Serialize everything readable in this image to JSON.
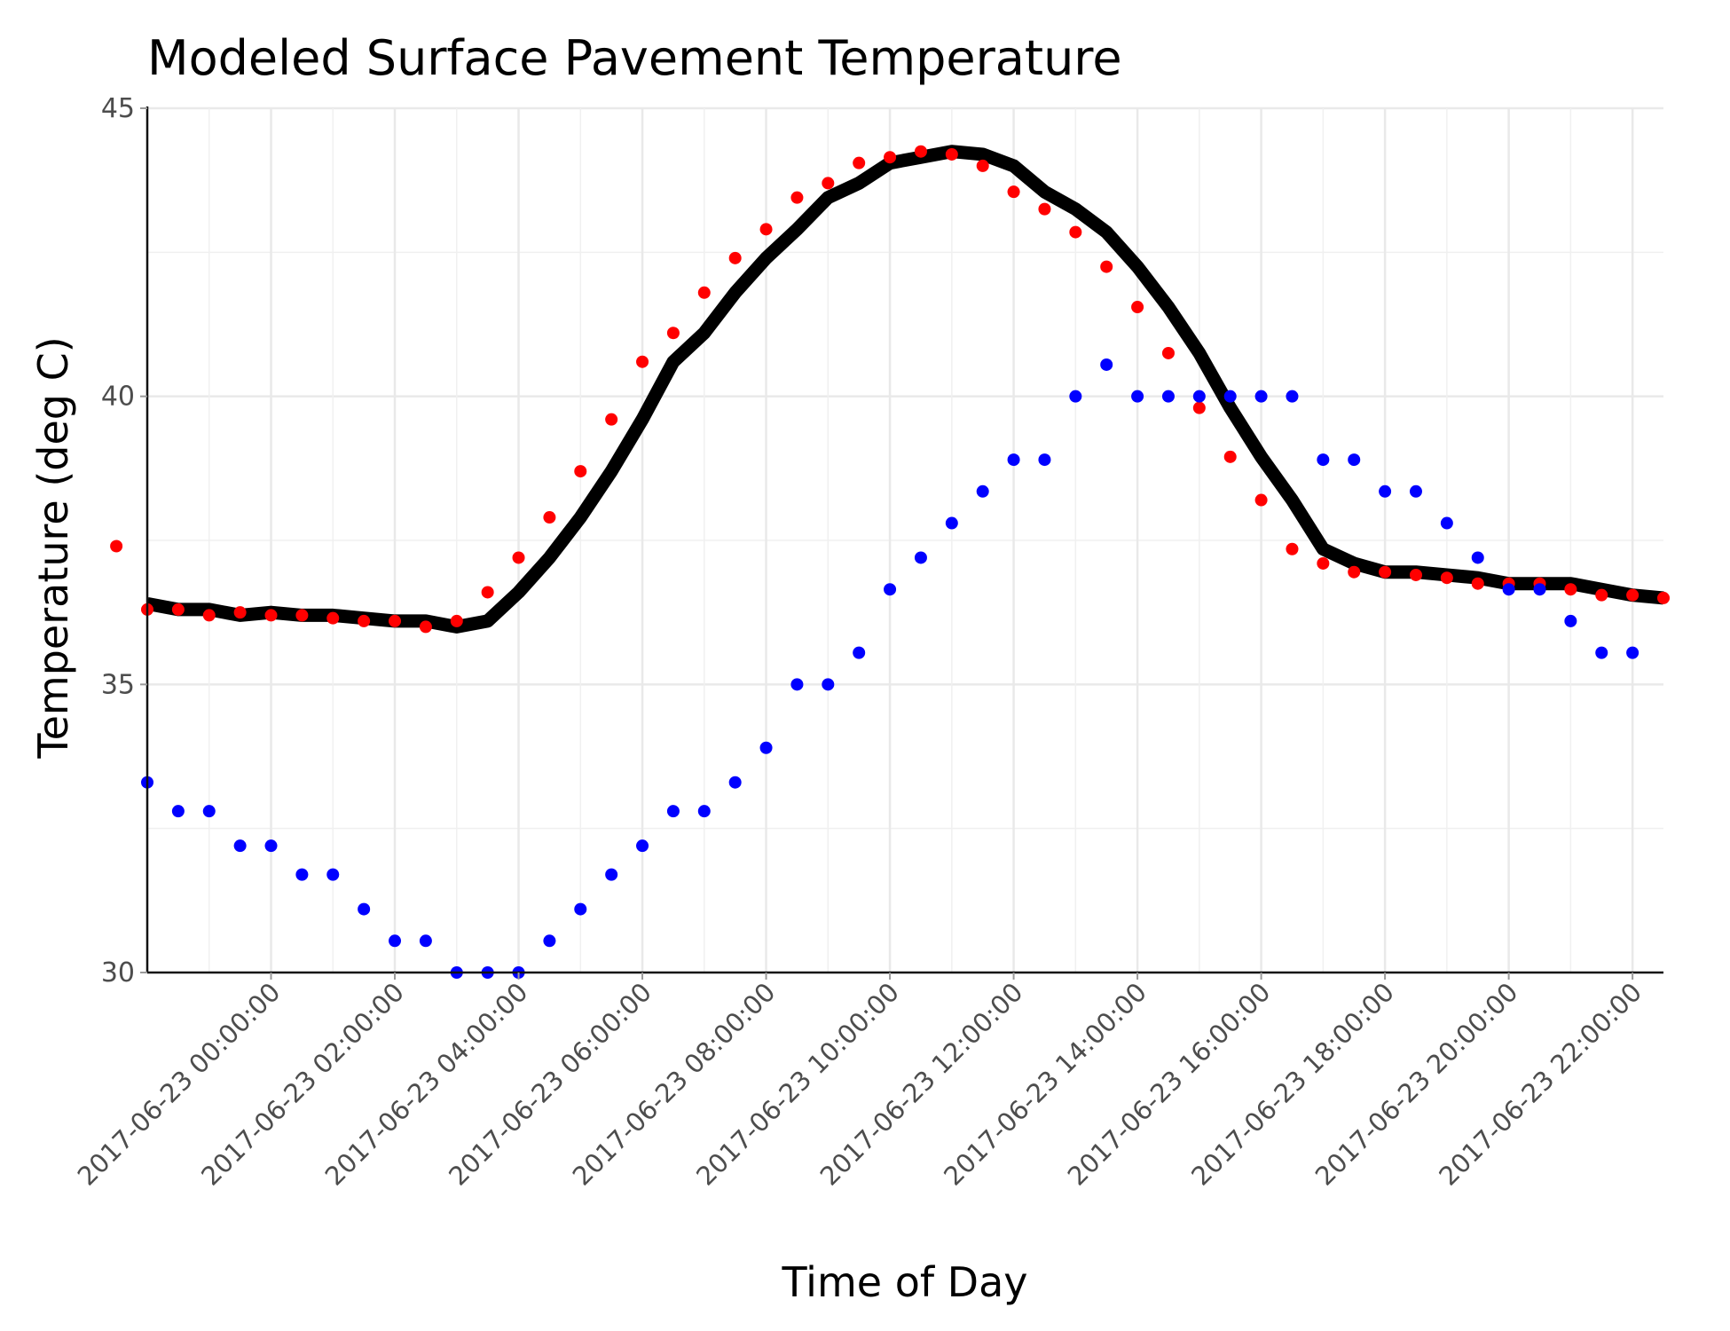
{
  "chart_data": {
    "type": "line",
    "title": "Modeled Surface Pavement Temperature",
    "xlabel": "Time of Day",
    "ylabel": "Temperature (deg C)",
    "x_tick_labels": [
      "2017-06-23 00:00:00",
      "2017-06-23 02:00:00",
      "2017-06-23 04:00:00",
      "2017-06-23 06:00:00",
      "2017-06-23 08:00:00",
      "2017-06-23 10:00:00",
      "2017-06-23 12:00:00",
      "2017-06-23 14:00:00",
      "2017-06-23 16:00:00",
      "2017-06-23 18:00:00",
      "2017-06-23 20:00:00",
      "2017-06-23 22:00:00"
    ],
    "xlim": [
      "2017-06-22 22:00:00",
      "2017-06-23 22:30:00"
    ],
    "y_ticks": [
      30,
      35,
      40,
      45
    ],
    "ylim": [
      30,
      45
    ],
    "grid": true,
    "series": [
      {
        "style": "thick-line",
        "color": "#000000",
        "x": [
          "2017-06-22 22:00:00",
          "2017-06-22 22:30:00",
          "2017-06-22 23:00:00",
          "2017-06-22 23:30:00",
          "2017-06-23 00:00:00",
          "2017-06-23 00:30:00",
          "2017-06-23 01:00:00",
          "2017-06-23 01:30:00",
          "2017-06-23 02:00:00",
          "2017-06-23 02:30:00",
          "2017-06-23 03:00:00",
          "2017-06-23 03:30:00",
          "2017-06-23 04:00:00",
          "2017-06-23 04:30:00",
          "2017-06-23 05:00:00",
          "2017-06-23 05:30:00",
          "2017-06-23 06:00:00",
          "2017-06-23 06:30:00",
          "2017-06-23 07:00:00",
          "2017-06-23 07:30:00",
          "2017-06-23 08:00:00",
          "2017-06-23 08:30:00",
          "2017-06-23 09:00:00",
          "2017-06-23 09:30:00",
          "2017-06-23 10:00:00",
          "2017-06-23 10:30:00",
          "2017-06-23 11:00:00",
          "2017-06-23 11:30:00",
          "2017-06-23 12:00:00",
          "2017-06-23 12:30:00",
          "2017-06-23 13:00:00",
          "2017-06-23 13:30:00",
          "2017-06-23 14:00:00",
          "2017-06-23 14:30:00",
          "2017-06-23 15:00:00",
          "2017-06-23 15:30:00",
          "2017-06-23 16:00:00",
          "2017-06-23 16:30:00",
          "2017-06-23 17:00:00",
          "2017-06-23 17:30:00",
          "2017-06-23 18:00:00",
          "2017-06-23 18:30:00",
          "2017-06-23 19:00:00",
          "2017-06-23 19:30:00",
          "2017-06-23 20:00:00",
          "2017-06-23 20:30:00",
          "2017-06-23 21:00:00",
          "2017-06-23 21:30:00",
          "2017-06-23 22:00:00",
          "2017-06-23 22:30:00"
        ],
        "values": [
          36.4,
          36.3,
          36.3,
          36.2,
          36.25,
          36.2,
          36.2,
          36.15,
          36.1,
          36.1,
          36.0,
          36.1,
          36.6,
          37.2,
          37.9,
          38.7,
          39.6,
          40.6,
          41.1,
          41.8,
          42.4,
          42.9,
          43.45,
          43.7,
          44.05,
          44.15,
          44.25,
          44.2,
          44.0,
          43.55,
          43.25,
          42.85,
          42.25,
          41.55,
          40.75,
          39.8,
          38.95,
          38.2,
          37.35,
          37.1,
          36.95,
          36.95,
          36.9,
          36.85,
          36.75,
          36.75,
          36.75,
          36.65,
          36.55,
          36.5
        ]
      },
      {
        "style": "points",
        "color": "#ff0000",
        "x": [
          "2017-06-22 21:30:00",
          "2017-06-22 22:00:00",
          "2017-06-22 22:30:00",
          "2017-06-22 23:00:00",
          "2017-06-22 23:30:00",
          "2017-06-23 00:00:00",
          "2017-06-23 00:30:00",
          "2017-06-23 01:00:00",
          "2017-06-23 01:30:00",
          "2017-06-23 02:00:00",
          "2017-06-23 02:30:00",
          "2017-06-23 03:00:00",
          "2017-06-23 03:30:00",
          "2017-06-23 04:00:00",
          "2017-06-23 04:30:00",
          "2017-06-23 05:00:00",
          "2017-06-23 05:30:00",
          "2017-06-23 06:00:00",
          "2017-06-23 06:30:00",
          "2017-06-23 07:00:00",
          "2017-06-23 07:30:00",
          "2017-06-23 08:00:00",
          "2017-06-23 08:30:00",
          "2017-06-23 09:00:00",
          "2017-06-23 09:30:00",
          "2017-06-23 10:00:00",
          "2017-06-23 10:30:00",
          "2017-06-23 11:00:00",
          "2017-06-23 11:30:00",
          "2017-06-23 12:00:00",
          "2017-06-23 12:30:00",
          "2017-06-23 13:00:00",
          "2017-06-23 13:30:00",
          "2017-06-23 14:00:00",
          "2017-06-23 14:30:00",
          "2017-06-23 15:00:00",
          "2017-06-23 15:30:00",
          "2017-06-23 16:00:00",
          "2017-06-23 16:30:00",
          "2017-06-23 17:00:00",
          "2017-06-23 17:30:00",
          "2017-06-23 18:00:00",
          "2017-06-23 18:30:00",
          "2017-06-23 19:00:00",
          "2017-06-23 19:30:00",
          "2017-06-23 20:00:00",
          "2017-06-23 20:30:00",
          "2017-06-23 21:00:00",
          "2017-06-23 21:30:00",
          "2017-06-23 22:00:00",
          "2017-06-23 22:30:00"
        ],
        "values": [
          37.4,
          36.3,
          36.3,
          36.2,
          36.25,
          36.2,
          36.2,
          36.15,
          36.1,
          36.1,
          36.0,
          36.1,
          36.6,
          37.2,
          37.9,
          38.7,
          39.6,
          40.6,
          41.1,
          41.8,
          42.4,
          42.9,
          43.45,
          43.7,
          44.05,
          44.15,
          44.25,
          44.2,
          44.0,
          43.55,
          43.25,
          42.85,
          42.25,
          41.55,
          40.75,
          39.8,
          38.95,
          38.2,
          37.35,
          37.1,
          36.95,
          36.95,
          36.9,
          36.85,
          36.75,
          36.75,
          36.75,
          36.65,
          36.55,
          36.55,
          36.5
        ]
      },
      {
        "style": "points",
        "color": "#0000ff",
        "x": [
          "2017-06-22 22:00:00",
          "2017-06-22 22:30:00",
          "2017-06-22 23:00:00",
          "2017-06-22 23:30:00",
          "2017-06-23 00:00:00",
          "2017-06-23 00:30:00",
          "2017-06-23 01:00:00",
          "2017-06-23 01:30:00",
          "2017-06-23 02:00:00",
          "2017-06-23 02:30:00",
          "2017-06-23 03:00:00",
          "2017-06-23 03:30:00",
          "2017-06-23 04:00:00",
          "2017-06-23 04:30:00",
          "2017-06-23 05:00:00",
          "2017-06-23 05:30:00",
          "2017-06-23 06:00:00",
          "2017-06-23 06:30:00",
          "2017-06-23 07:00:00",
          "2017-06-23 07:30:00",
          "2017-06-23 08:00:00",
          "2017-06-23 08:30:00",
          "2017-06-23 09:00:00",
          "2017-06-23 09:30:00",
          "2017-06-23 10:00:00",
          "2017-06-23 10:30:00",
          "2017-06-23 11:00:00",
          "2017-06-23 11:30:00",
          "2017-06-23 12:00:00",
          "2017-06-23 12:30:00",
          "2017-06-23 13:00:00",
          "2017-06-23 13:30:00",
          "2017-06-23 14:00:00",
          "2017-06-23 14:30:00",
          "2017-06-23 15:00:00",
          "2017-06-23 15:30:00",
          "2017-06-23 16:00:00",
          "2017-06-23 16:30:00",
          "2017-06-23 17:00:00",
          "2017-06-23 17:30:00",
          "2017-06-23 18:00:00",
          "2017-06-23 18:30:00",
          "2017-06-23 19:00:00",
          "2017-06-23 19:30:00",
          "2017-06-23 20:00:00",
          "2017-06-23 20:30:00",
          "2017-06-23 21:00:00",
          "2017-06-23 21:30:00",
          "2017-06-23 22:00:00"
        ],
        "values": [
          33.3,
          32.8,
          32.8,
          32.2,
          32.2,
          31.7,
          31.7,
          31.1,
          30.55,
          30.55,
          30.0,
          30.0,
          30.0,
          30.55,
          31.1,
          31.7,
          32.2,
          32.8,
          32.8,
          33.3,
          33.9,
          35.0,
          35.0,
          35.55,
          36.65,
          37.2,
          37.8,
          38.35,
          38.9,
          38.9,
          40.0,
          40.55,
          40.0,
          40.0,
          40.0,
          40.0,
          40.0,
          40.0,
          38.9,
          38.9,
          38.35,
          38.35,
          37.8,
          37.2,
          36.65,
          36.65,
          36.1,
          35.55,
          35.55
        ]
      }
    ]
  }
}
